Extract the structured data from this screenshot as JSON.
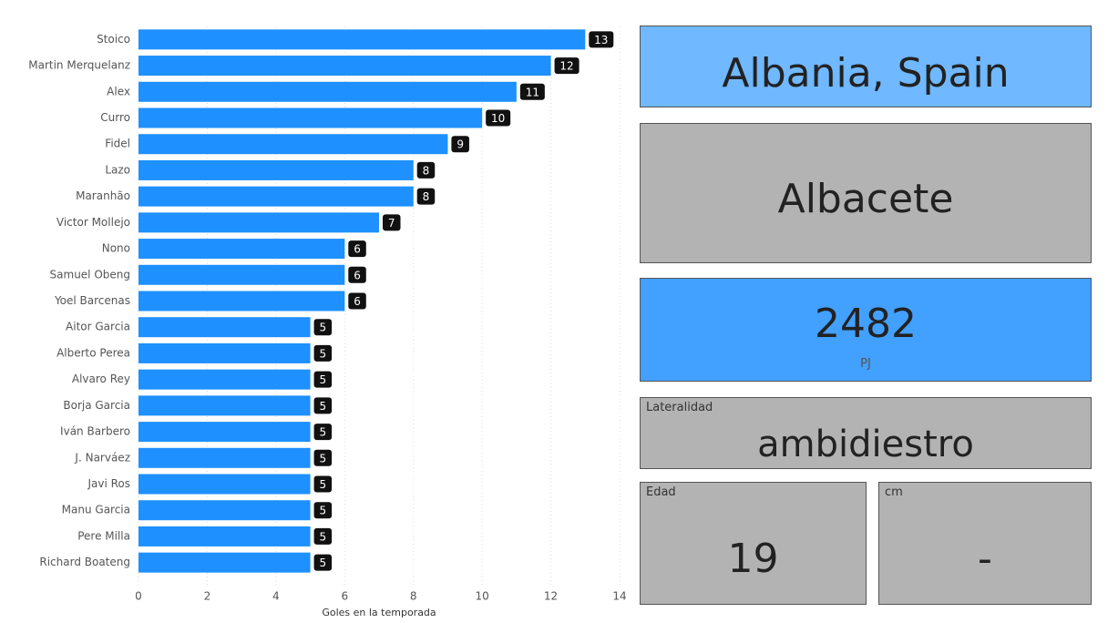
{
  "chart_data": {
    "type": "hbar",
    "categories": [
      "Stoico",
      "Martin Merquelanz",
      "Alex",
      "Curro",
      "Fidel",
      "Lazo",
      "Maranhão",
      "Victor Mollejo",
      "Nono",
      "Samuel Obeng",
      "Yoel Barcenas",
      "Aitor Garcia",
      "Alberto Perea",
      "Alvaro Rey",
      "Borja Garcia",
      "Iván Barbero",
      "J. Narváez",
      "Javi Ros",
      "Manu Garcia",
      "Pere Milla",
      "Richard Boateng"
    ],
    "values": [
      13,
      12,
      11,
      10,
      9,
      8,
      8,
      7,
      6,
      6,
      6,
      5,
      5,
      5,
      5,
      5,
      5,
      5,
      5,
      5,
      5
    ],
    "color": "#1e90ff",
    "xlabel": "Goles en la temporada",
    "xlim": [
      0,
      14
    ],
    "xticks": [
      0,
      2,
      4,
      6,
      8,
      10,
      12,
      14
    ],
    "grid": true
  },
  "cards": [
    {
      "value": "Albania, Spain"
    },
    {
      "value": "Albacete"
    },
    {
      "value": "2482",
      "subtitle": "PJ"
    },
    {
      "title": "Lateralidad",
      "value": "ambidiestro"
    },
    {
      "title": "Edad",
      "value": "19"
    },
    {
      "title": "cm",
      "value": "-"
    }
  ]
}
